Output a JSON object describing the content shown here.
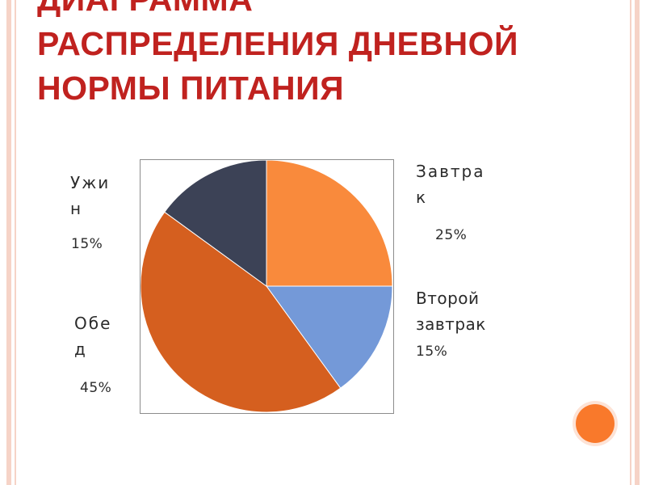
{
  "title": {
    "line1": "ДИАГРАММА",
    "line2": "РАСПРЕДЕЛЕНИЯ ДНЕВНОЙ",
    "line3": "НОРМЫ ПИТАНИЯ"
  },
  "chart_data": {
    "type": "pie",
    "start_angle_deg": 0,
    "direction": "clockwise",
    "slices": [
      {
        "label_lines": [
          "Завтра",
          "к"
        ],
        "value": 25,
        "value_label": "25%",
        "color": "#f98a3c"
      },
      {
        "label_lines": [
          "Второй",
          "завтрак"
        ],
        "value": 15,
        "value_label": "15%",
        "color": "#7499d8"
      },
      {
        "label_lines": [
          "Обе",
          "д"
        ],
        "value": 45,
        "value_label": "45%",
        "color": "#d55f1f"
      },
      {
        "label_lines": [
          "Ужи",
          "н"
        ],
        "value": 15,
        "value_label": "15%",
        "color": "#3c4256"
      }
    ]
  },
  "decor": {
    "accent_dot_color": "#f9792b",
    "frame_color": "#f6d3c7"
  }
}
